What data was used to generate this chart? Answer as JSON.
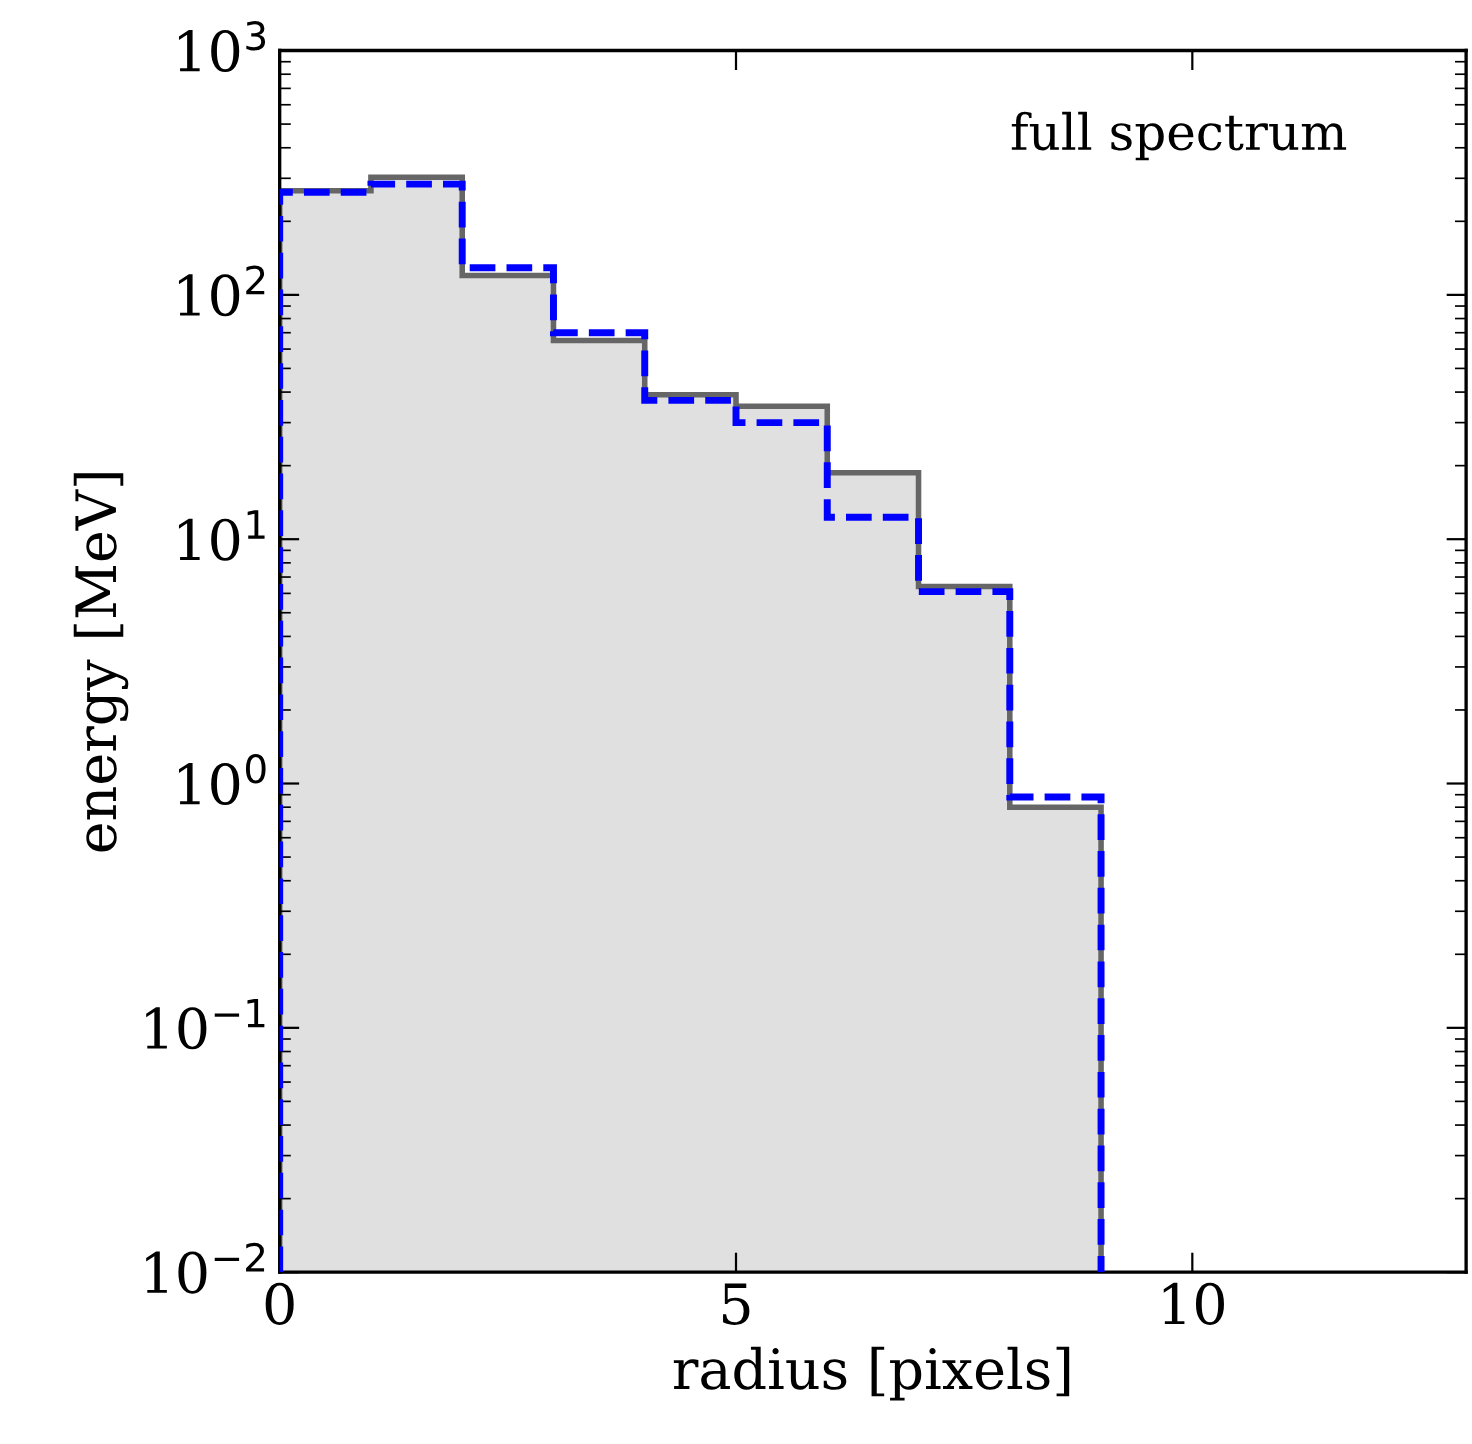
{
  "chart_data": {
    "type": "histogram",
    "xlabel": "radius [pixels]",
    "ylabel": "energy [MeV]",
    "annotations": [
      "full spectrum"
    ],
    "bins": [
      0,
      1,
      2,
      3,
      4,
      5,
      6,
      7,
      8,
      9
    ],
    "series": [
      {
        "color": "#666666",
        "values": [
          267,
          303,
          120,
          65,
          39,
          35,
          18.7,
          6.4,
          0.8
        ],
        "line_style": "solid"
      },
      {
        "color": "#0000ff",
        "values": [
          263,
          284,
          129,
          70,
          37,
          30,
          12.3,
          6.1,
          0.88
        ],
        "line_style": "dashed"
      }
    ],
    "log": "y",
    "xlim": [
      0,
      13
    ],
    "xticks": [
      0,
      5,
      10
    ],
    "ylim": [
      0.01,
      1000
    ],
    "yticks": [
      {
        "value": 0.01,
        "label": "10$^{−2}$"
      },
      {
        "value": 0.1,
        "label": "10$^{−1}$"
      },
      {
        "value": 1,
        "label": "10$^{0}$"
      },
      {
        "value": 10,
        "label": "10$^{1}$"
      },
      {
        "value": 100,
        "label": "10$^{2}$"
      },
      {
        "value": 1000,
        "label": "10$^{3}$"
      }
    ],
    "grid": false,
    "legend": false
  }
}
